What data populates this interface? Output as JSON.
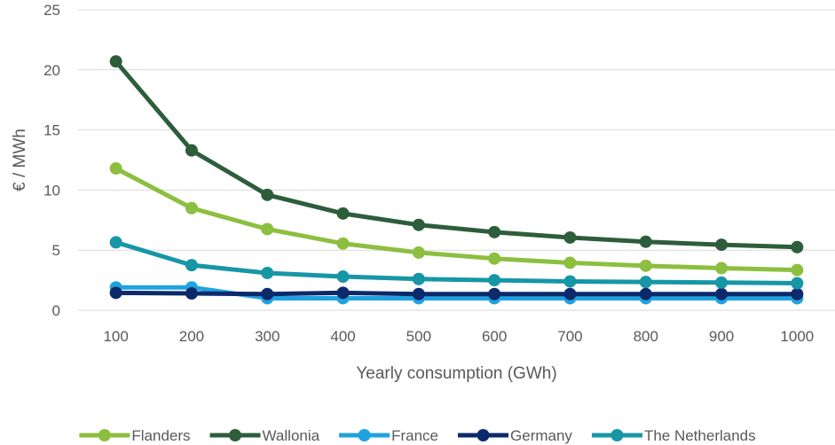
{
  "chart_data": {
    "type": "line",
    "title": "",
    "xlabel": "Yearly consumption (GWh)",
    "ylabel": "€ / MWh",
    "ylim": [
      0,
      25
    ],
    "yticks": [
      0,
      5,
      10,
      15,
      20,
      25
    ],
    "grid": true,
    "legend": "bottom",
    "categories": [
      "100",
      "200",
      "300",
      "400",
      "500",
      "600",
      "700",
      "800",
      "900",
      "1000"
    ],
    "series": [
      {
        "name": "Flanders",
        "color": "#8cbf3f",
        "values": [
          11.8,
          8.5,
          6.75,
          5.55,
          4.8,
          4.3,
          3.95,
          3.7,
          3.5,
          3.35
        ]
      },
      {
        "name": "Wallonia",
        "color": "#2e5d3b",
        "values": [
          20.7,
          13.3,
          9.6,
          8.05,
          7.1,
          6.5,
          6.05,
          5.7,
          5.45,
          5.25
        ]
      },
      {
        "name": "France",
        "color": "#1fa3e0",
        "values": [
          1.9,
          1.9,
          1.0,
          1.0,
          1.0,
          1.0,
          1.0,
          1.0,
          1.0,
          1.0
        ]
      },
      {
        "name": "Germany",
        "color": "#0c2a6b",
        "values": [
          1.45,
          1.4,
          1.35,
          1.45,
          1.35,
          1.35,
          1.35,
          1.35,
          1.35,
          1.35
        ]
      },
      {
        "name": "The Netherlands",
        "color": "#1796a6",
        "values": [
          5.65,
          3.75,
          3.1,
          2.8,
          2.6,
          2.5,
          2.4,
          2.35,
          2.3,
          2.25
        ]
      }
    ]
  }
}
